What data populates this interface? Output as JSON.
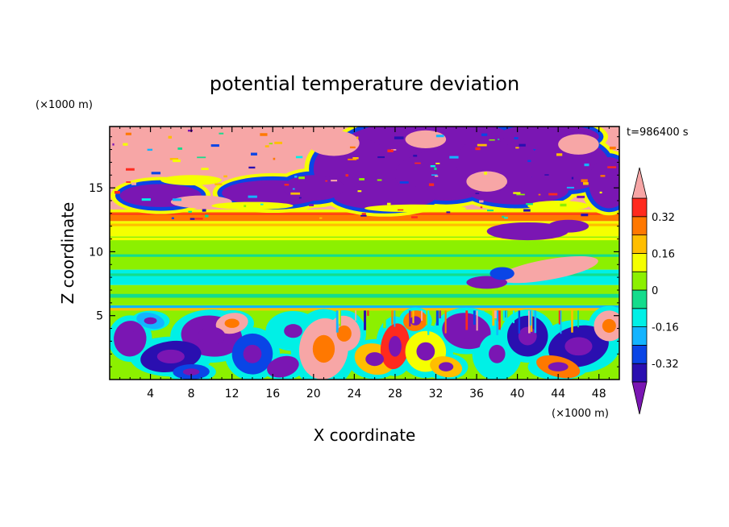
{
  "chart_data": {
    "type": "heatmap",
    "title": "potential temperature deviation",
    "xlabel": "X coordinate",
    "ylabel": "Z coordinate",
    "x_unit": "(×1000 m)",
    "y_unit": "(×1000 m)",
    "time_label": "t=986400 s",
    "xlim": [
      0,
      50
    ],
    "ylim": [
      0,
      19.8
    ],
    "x_ticks": [
      "4",
      "8",
      "12",
      "16",
      "20",
      "24",
      "28",
      "32",
      "36",
      "40",
      "44",
      "48"
    ],
    "y_ticks": [
      "5",
      "10",
      "15"
    ],
    "x_tick_values": [
      4,
      8,
      12,
      16,
      20,
      24,
      28,
      32,
      36,
      40,
      44,
      48
    ],
    "y_tick_values": [
      5,
      10,
      15
    ],
    "colorbar": {
      "labels": [
        "0.32",
        "0.16",
        "0",
        "-0.16",
        "-0.32"
      ],
      "label_values": [
        0.32,
        0.16,
        0,
        -0.16,
        -0.32
      ],
      "levels": [
        -0.4,
        -0.32,
        -0.24,
        -0.16,
        -0.08,
        0,
        0.08,
        0.16,
        0.24,
        0.32,
        0.4
      ],
      "colors": [
        "#7a16b3",
        "#2a0fb0",
        "#0a45e6",
        "#14b4ff",
        "#00f0e6",
        "#14dc8c",
        "#8cf000",
        "#f5ff00",
        "#ffbe00",
        "#ff7800",
        "#ff2a1e",
        "#f7a6a6"
      ]
    },
    "bands": [
      {
        "z": [
          15.2,
          19.8
        ],
        "note": "mixed pink and purple, turbulent"
      },
      {
        "z": [
          13.2,
          15.2
        ],
        "note": "purple / pink transition"
      },
      {
        "z": [
          12.4,
          13.2
        ],
        "note": "orange-red strip"
      },
      {
        "z": [
          11.2,
          12.4
        ],
        "note": "yellow"
      },
      {
        "z": [
          8.6,
          11.2
        ],
        "note": "green"
      },
      {
        "z": [
          7.4,
          8.6
        ],
        "note": "cyan"
      },
      {
        "z": [
          5.4,
          7.4
        ],
        "note": "green"
      },
      {
        "z": [
          0,
          5.4
        ],
        "note": "turbulent mix, all colors"
      }
    ]
  }
}
